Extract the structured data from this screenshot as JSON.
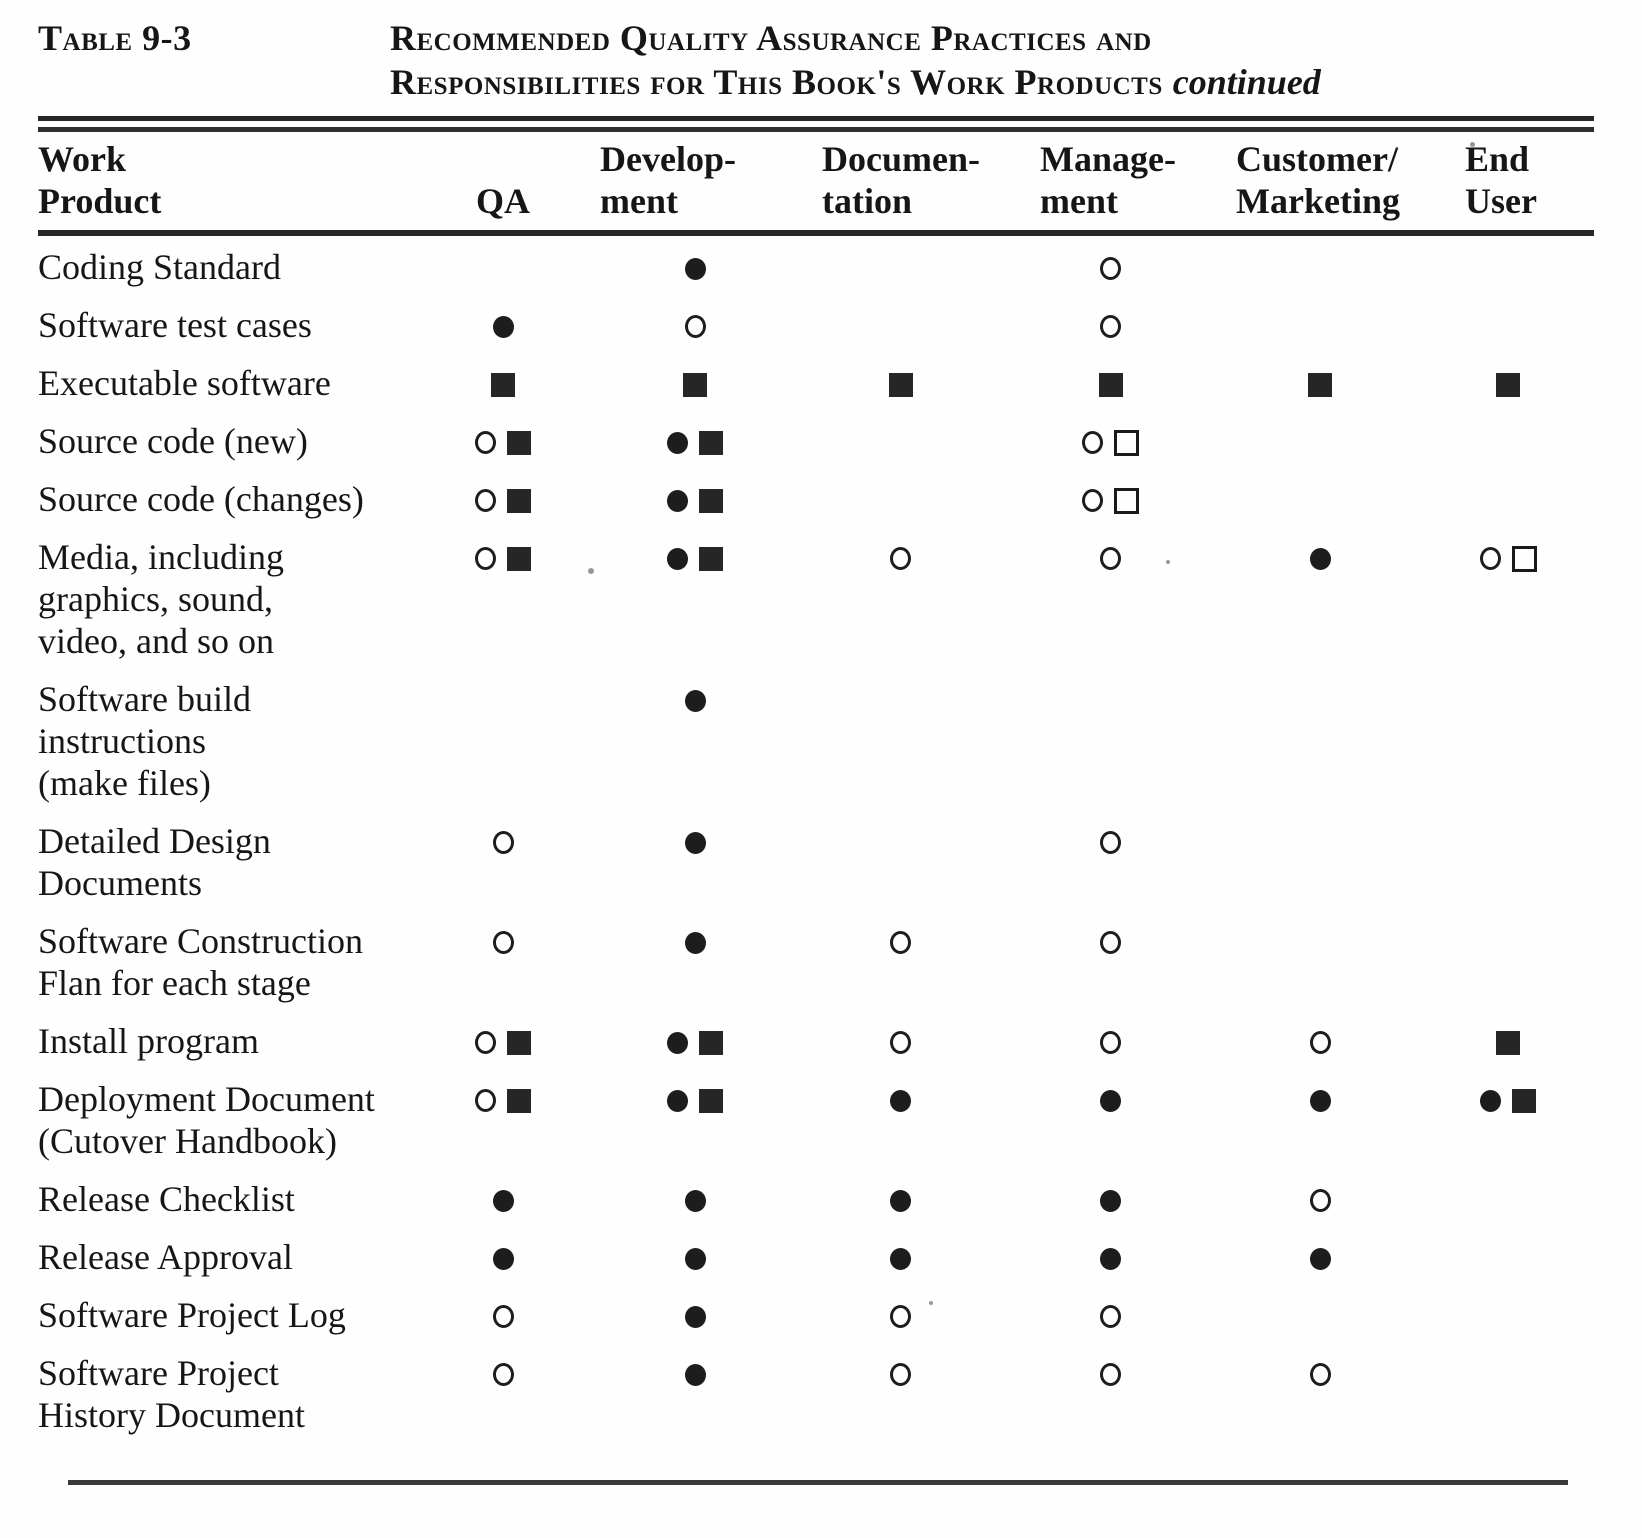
{
  "header": {
    "table_label": "Table 9-3",
    "title_line1": "Recommended Quality Assurance Practices and",
    "title_line2": "Responsibilities for This Book's Work Products",
    "continued": "continued"
  },
  "symbols": {
    "fc": "filled-circle",
    "oc": "open-circle",
    "fs": "filled-square",
    "os": "open-square"
  },
  "table": {
    "columns": [
      {
        "id": "work_product",
        "line1": "Work",
        "line2": "Product"
      },
      {
        "id": "qa",
        "line1": "",
        "line2": "QA"
      },
      {
        "id": "development",
        "line1": "Develop-",
        "line2": "ment"
      },
      {
        "id": "documentation",
        "line1": "Documen-",
        "line2": "tation"
      },
      {
        "id": "management",
        "line1": "Manage-",
        "line2": "ment"
      },
      {
        "id": "customer_marketing",
        "line1": "Customer/",
        "line2": "Marketing"
      },
      {
        "id": "end_user",
        "line1": "End",
        "line2": "User"
      }
    ],
    "rows": [
      {
        "label_lines": [
          "Coding Standard"
        ],
        "cells": [
          [],
          [
            "fc"
          ],
          [],
          [
            "oc"
          ],
          [],
          []
        ]
      },
      {
        "label_lines": [
          "Software test cases"
        ],
        "cells": [
          [
            "fc"
          ],
          [
            "oc"
          ],
          [],
          [
            "oc"
          ],
          [],
          []
        ]
      },
      {
        "label_lines": [
          "Executable software"
        ],
        "cells": [
          [
            "fs"
          ],
          [
            "fs"
          ],
          [
            "fs"
          ],
          [
            "fs"
          ],
          [
            "fs"
          ],
          [
            "fs"
          ]
        ]
      },
      {
        "label_lines": [
          "Source code (new)"
        ],
        "cells": [
          [
            "oc",
            "fs"
          ],
          [
            "fc",
            "fs"
          ],
          [],
          [
            "oc",
            "os"
          ],
          [],
          []
        ]
      },
      {
        "label_lines": [
          "Source code (changes)"
        ],
        "cells": [
          [
            "oc",
            "fs"
          ],
          [
            "fc",
            "fs"
          ],
          [],
          [
            "oc",
            "os"
          ],
          [],
          []
        ]
      },
      {
        "label_lines": [
          "Media, including",
          "graphics, sound,",
          "video, and so on"
        ],
        "cells": [
          [
            "oc",
            "fs"
          ],
          [
            "fc",
            "fs"
          ],
          [
            "oc"
          ],
          [
            "oc"
          ],
          [
            "fc"
          ],
          [
            "oc",
            "os"
          ]
        ]
      },
      {
        "label_lines": [
          "Software build",
          "instructions",
          "(make files)"
        ],
        "cells": [
          [],
          [
            "fc"
          ],
          [],
          [],
          [],
          []
        ]
      },
      {
        "label_lines": [
          "Detailed Design",
          "Documents"
        ],
        "cells": [
          [
            "oc"
          ],
          [
            "fc"
          ],
          [],
          [
            "oc"
          ],
          [],
          []
        ]
      },
      {
        "label_lines": [
          "Software Construction",
          "Flan for each stage"
        ],
        "cells": [
          [
            "oc"
          ],
          [
            "fc"
          ],
          [
            "oc"
          ],
          [
            "oc"
          ],
          [],
          []
        ]
      },
      {
        "label_lines": [
          "Install program"
        ],
        "cells": [
          [
            "oc",
            "fs"
          ],
          [
            "fc",
            "fs"
          ],
          [
            "oc"
          ],
          [
            "oc"
          ],
          [
            "oc"
          ],
          [
            "fs"
          ]
        ]
      },
      {
        "label_lines": [
          "Deployment Document",
          "(Cutover Handbook)"
        ],
        "cells": [
          [
            "oc",
            "fs"
          ],
          [
            "fc",
            "fs"
          ],
          [
            "fc"
          ],
          [
            "fc"
          ],
          [
            "fc"
          ],
          [
            "fc",
            "fs"
          ]
        ]
      },
      {
        "label_lines": [
          "Release Checklist"
        ],
        "cells": [
          [
            "fc"
          ],
          [
            "fc"
          ],
          [
            "fc"
          ],
          [
            "fc"
          ],
          [
            "oc"
          ],
          []
        ]
      },
      {
        "label_lines": [
          "Release Approval"
        ],
        "cells": [
          [
            "fc"
          ],
          [
            "fc"
          ],
          [
            "fc"
          ],
          [
            "fc"
          ],
          [
            "fc"
          ],
          []
        ]
      },
      {
        "label_lines": [
          "Software Project Log"
        ],
        "cells": [
          [
            "oc"
          ],
          [
            "fc"
          ],
          [
            "oc"
          ],
          [
            "oc"
          ],
          [],
          []
        ]
      },
      {
        "label_lines": [
          "Software Project",
          "History Document"
        ],
        "cells": [
          [
            "oc"
          ],
          [
            "fc"
          ],
          [
            "oc"
          ],
          [
            "oc"
          ],
          [
            "oc"
          ],
          []
        ]
      }
    ]
  }
}
